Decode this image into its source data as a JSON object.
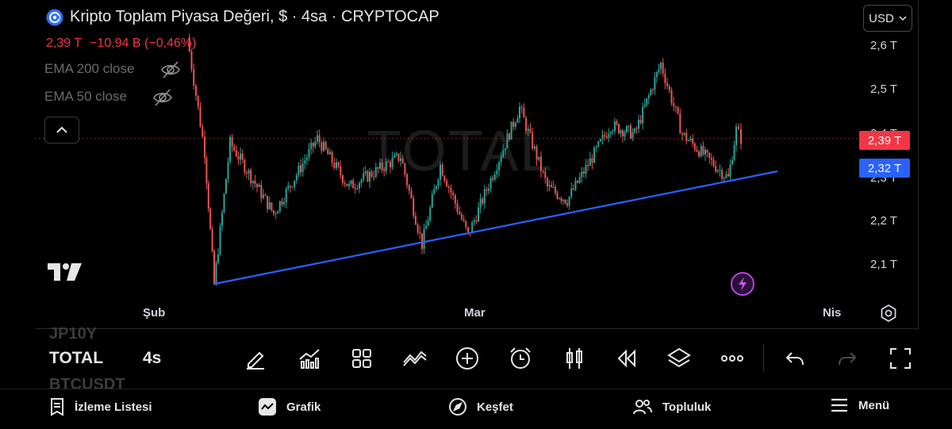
{
  "header": {
    "title": "Kripto Toplam Piyasa Değeri, $ · 4sa · CRYPTOCAP",
    "price": "2,39 T",
    "change": "−10,94 B (−0,46%)",
    "currency": "USD"
  },
  "indicators": [
    {
      "label": "EMA 200 close",
      "visibility_icon": "eye-off-icon"
    },
    {
      "label": "EMA 50 close",
      "visibility_icon": "eye-off-icon"
    }
  ],
  "watermark": "TOTAL",
  "price_axis": {
    "ticks": [
      "2,6 T",
      "2,5 T",
      "2,4 T",
      "2,3 T",
      "2,2 T",
      "2,1 T"
    ],
    "current_price_tag": "2,39 T",
    "trendline_price_tag": "2,32 T"
  },
  "time_axis": {
    "labels": [
      "Şub",
      "Mar",
      "Nis"
    ]
  },
  "chart_data": {
    "type": "candlestick",
    "symbol": "TOTAL",
    "interval": "4sa",
    "price_unit": "T USD",
    "ylim": [
      2.04,
      2.63
    ],
    "x_labels": [
      "Şub",
      "Mar",
      "Nis"
    ],
    "last_price": 2.39,
    "candle_colors": {
      "up": "#26a69a",
      "down": "#ef5350"
    },
    "swing_points": [
      {
        "time": "early Jan",
        "price": 2.62
      },
      {
        "time": "late Jan",
        "price": 2.36
      },
      {
        "time": "early Feb",
        "price": 2.06
      },
      {
        "time": "Feb",
        "price": 2.38
      },
      {
        "time": "mid Feb",
        "price": 2.22
      },
      {
        "time": "mid Feb",
        "price": 2.39
      },
      {
        "time": "mid Feb",
        "price": 2.28
      },
      {
        "time": "late Feb",
        "price": 2.35
      },
      {
        "time": "late Feb",
        "price": 2.15
      },
      {
        "time": "late Feb",
        "price": 2.33
      },
      {
        "time": "early Mar",
        "price": 2.17
      },
      {
        "time": "early Mar",
        "price": 2.46
      },
      {
        "time": "early Mar",
        "price": 2.28
      },
      {
        "time": "mid Mar",
        "price": 2.25
      },
      {
        "time": "mid Mar",
        "price": 2.42
      },
      {
        "time": "mid Mar",
        "price": 2.4
      },
      {
        "time": "late Mar",
        "price": 2.56
      },
      {
        "time": "late Mar",
        "price": 2.4
      },
      {
        "time": "late Mar",
        "price": 2.3
      },
      {
        "time": "late Mar",
        "price": 2.41
      },
      {
        "time": "late Mar",
        "price": 2.39
      }
    ],
    "trendline": {
      "start": {
        "time": "early Feb",
        "price": 2.06
      },
      "end": {
        "time": "late Mar",
        "price": 2.33
      },
      "color": "#2962ff"
    }
  },
  "toolbar": {
    "symbol": "TOTAL",
    "interval": "4s",
    "ghost_prev_symbol": "JP10Y",
    "ghost_next_symbol": "BTCUSDT",
    "tools": [
      "pencil-icon",
      "indicators-icon",
      "grid-icon",
      "compare-icon",
      "add-icon",
      "alarm-icon",
      "candles-icon",
      "replay-icon",
      "layers-icon",
      "more-icon",
      "undo-icon",
      "redo-icon",
      "fullscreen-icon"
    ]
  },
  "bottom_nav": {
    "items": [
      {
        "label": "İzleme Listesi",
        "icon": "watchlist-icon"
      },
      {
        "label": "Grafik",
        "icon": "chart-icon"
      },
      {
        "label": "Keşfet",
        "icon": "compass-icon"
      },
      {
        "label": "Topluluk",
        "icon": "community-icon"
      },
      {
        "label": "Menü",
        "icon": "menu-icon"
      }
    ]
  }
}
